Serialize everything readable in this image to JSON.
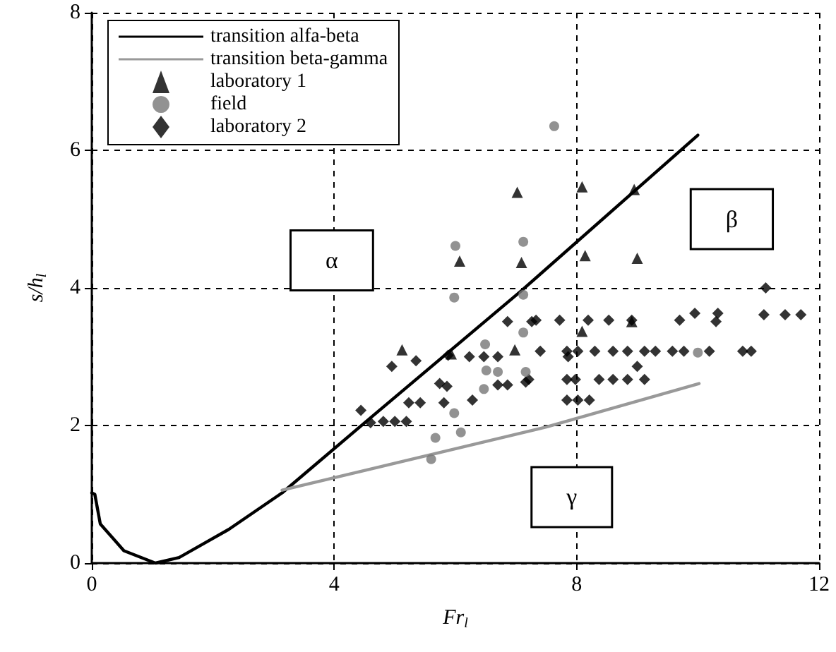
{
  "chart_data": {
    "type": "scatter",
    "xlabel": "Fr$_{l}$",
    "ylabel": "s/h$_{l}$",
    "xlim": [
      0,
      12
    ],
    "ylim": [
      0,
      8
    ],
    "xticks": [
      0,
      4,
      8,
      12
    ],
    "yticks": [
      0,
      2,
      4,
      6,
      8
    ],
    "grid": true,
    "legend": "top left",
    "series": [
      {
        "name": "transition alfa-beta",
        "type": "line",
        "color": "#000000",
        "marker": "none",
        "line_style": "solid",
        "x": [
          0,
          0.05,
          0.14,
          0.53,
          1.05,
          1.44,
          2.26,
          3.14,
          4.53,
          7.09,
          10.0
        ],
        "values": [
          1.02,
          1.0,
          0.57,
          0.18,
          0,
          0.08,
          0.49,
          1.02,
          2.06,
          3.96,
          6.22
        ]
      },
      {
        "name": "transition beta-gamma",
        "type": "line",
        "color": "#999999",
        "marker": "none",
        "line_style": "solid",
        "x": [
          3.14,
          7.51,
          10.02
        ],
        "values": [
          1.06,
          1.98,
          2.61
        ]
      },
      {
        "name": "laboratory 1",
        "color": "#000000",
        "marker": "triangle",
        "x": [
          5.12,
          7.02,
          6.07,
          7.09,
          5.93,
          6.98,
          8.09,
          8.95,
          8.14,
          9.0,
          8.09,
          8.91
        ],
        "values": [
          3.1,
          5.39,
          4.39,
          4.37,
          3.04,
          3.1,
          5.47,
          5.43,
          4.47,
          4.43,
          3.37,
          3.51
        ]
      },
      {
        "name": "field",
        "color": "#777777",
        "marker": "circle",
        "x": [
          6.0,
          7.12,
          5.98,
          7.12,
          7.12,
          6.49,
          6.51,
          6.7,
          7.16,
          6.47,
          5.98,
          6.09,
          5.67,
          5.6,
          7.63,
          10.0
        ],
        "values": [
          4.61,
          4.67,
          3.86,
          3.9,
          3.35,
          3.18,
          2.8,
          2.78,
          2.78,
          2.53,
          2.18,
          1.9,
          1.82,
          1.51,
          6.35,
          3.06
        ]
      },
      {
        "name": "laboratory 2",
        "color": "#000000",
        "marker": "diamond",
        "x": [
          6.86,
          7.26,
          4.95,
          5.35,
          5.88,
          6.23,
          6.47,
          6.7,
          5.74,
          5.86,
          5.23,
          5.42,
          5.81,
          6.28,
          6.7,
          6.86,
          7.16,
          4.44,
          4.6,
          4.81,
          5.0,
          5.19,
          11.12,
          11.09,
          11.44,
          11.7,
          9.95,
          10.33,
          10.3,
          9.7,
          7.33,
          7.72,
          8.19,
          8.53,
          8.91,
          7.4,
          7.84,
          8.02,
          8.3,
          8.6,
          8.84,
          9.12,
          9.3,
          9.58,
          9.77,
          10.19,
          10.74,
          10.88,
          7.86,
          9.0,
          7.21,
          7.84,
          7.98,
          8.37,
          8.6,
          8.84,
          9.12,
          7.84,
          8.02,
          8.21
        ],
        "values": [
          3.51,
          3.51,
          2.86,
          2.94,
          3.02,
          3.0,
          3.0,
          3.0,
          2.61,
          2.57,
          2.33,
          2.33,
          2.33,
          2.37,
          2.59,
          2.59,
          2.63,
          2.22,
          2.04,
          2.06,
          2.06,
          2.06,
          4.0,
          3.61,
          3.61,
          3.61,
          3.63,
          3.63,
          3.51,
          3.53,
          3.53,
          3.53,
          3.53,
          3.53,
          3.53,
          3.08,
          3.08,
          3.08,
          3.08,
          3.08,
          3.08,
          3.08,
          3.08,
          3.08,
          3.08,
          3.08,
          3.08,
          3.08,
          3.0,
          2.86,
          2.67,
          2.67,
          2.67,
          2.67,
          2.67,
          2.67,
          2.67,
          2.37,
          2.37,
          2.37
        ]
      }
    ],
    "annotations": [
      "α",
      "β",
      "γ"
    ]
  }
}
